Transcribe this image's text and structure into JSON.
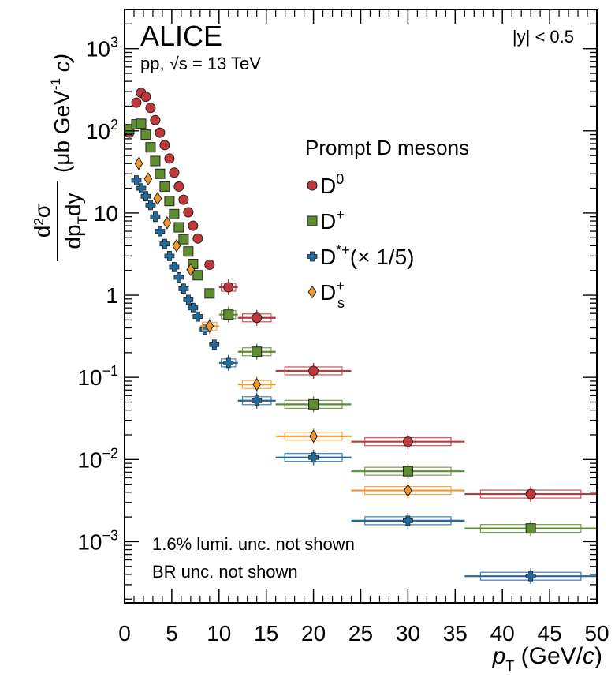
{
  "chart_data": {
    "type": "scatter",
    "y_scale": "log",
    "xlim": [
      0,
      50
    ],
    "ylim": [
      0.00018,
      3000
    ],
    "x_ticks": [
      "0",
      "5",
      "10",
      "15",
      "20",
      "25",
      "30",
      "35",
      "40",
      "45",
      "50"
    ],
    "y_ticks": [
      {
        "value": 1000,
        "base": "10",
        "exp": "3"
      },
      {
        "value": 100,
        "base": "10",
        "exp": "2"
      },
      {
        "value": 10,
        "base": "10",
        "exp": ""
      },
      {
        "value": 1,
        "base": "1",
        "exp": ""
      },
      {
        "value": 0.1,
        "base": "10",
        "exp": "−1"
      },
      {
        "value": 0.01,
        "base": "10",
        "exp": "−2"
      },
      {
        "value": 0.001,
        "base": "10",
        "exp": "−3"
      }
    ],
    "xlabel": {
      "var": "p",
      "sub": "T",
      "unit": " (GeV/",
      "c": "c",
      "close": ")"
    },
    "ylabel": {
      "num": "d²σ",
      "den": "dp",
      "den_sub": "T",
      "den_end": "dy",
      "unit": "(μb GeV",
      "unit_exp": "-1",
      "unit_c": " c)"
    },
    "experiment": "ALICE",
    "system": "pp, √s = 13 TeV",
    "rapidity": "|y| < 0.5",
    "legend_title": "Prompt D mesons",
    "legend_placement": "right-middle",
    "notes": [
      "1.6% lumi. unc. not shown",
      "BR unc. not shown"
    ],
    "series": [
      {
        "name": "D0",
        "label_main": "D",
        "label_sup": "0",
        "label_sub": "",
        "label_extra": "",
        "color": "#c0383a",
        "marker": "circle",
        "points": [
          {
            "x": 0.5,
            "y": 95
          },
          {
            "x": 1.25,
            "y": 220
          },
          {
            "x": 1.75,
            "y": 290
          },
          {
            "x": 2.25,
            "y": 260
          },
          {
            "x": 2.75,
            "y": 190
          },
          {
            "x": 3.25,
            "y": 135
          },
          {
            "x": 3.75,
            "y": 95
          },
          {
            "x": 4.25,
            "y": 67
          },
          {
            "x": 4.75,
            "y": 46
          },
          {
            "x": 5.25,
            "y": 31
          },
          {
            "x": 5.75,
            "y": 21
          },
          {
            "x": 6.25,
            "y": 14.5
          },
          {
            "x": 6.75,
            "y": 10.2
          },
          {
            "x": 7.25,
            "y": 7.0
          },
          {
            "x": 7.75,
            "y": 4.9
          },
          {
            "x": 9,
            "y": 2.35
          },
          {
            "x": 11,
            "y": 1.25,
            "xerr": 1
          },
          {
            "x": 14,
            "y": 0.53,
            "xerr": 2
          },
          {
            "x": 20,
            "y": 0.12,
            "xerr": 4
          },
          {
            "x": 30,
            "y": 0.0165,
            "xerr": 6
          },
          {
            "x": 43,
            "y": 0.0038,
            "xerr": 7
          }
        ]
      },
      {
        "name": "D+",
        "label_main": "D",
        "label_sup": "+",
        "label_sub": "",
        "label_extra": "",
        "color": "#5e8f2e",
        "marker": "square",
        "points": [
          {
            "x": 0.5,
            "y": 105
          },
          {
            "x": 1.25,
            "y": 120
          },
          {
            "x": 1.75,
            "y": 122
          },
          {
            "x": 2.25,
            "y": 90
          },
          {
            "x": 2.75,
            "y": 63
          },
          {
            "x": 3.25,
            "y": 43
          },
          {
            "x": 3.75,
            "y": 30
          },
          {
            "x": 4.25,
            "y": 21
          },
          {
            "x": 4.75,
            "y": 14
          },
          {
            "x": 5.25,
            "y": 9.7
          },
          {
            "x": 5.75,
            "y": 6.7
          },
          {
            "x": 6.25,
            "y": 4.8
          },
          {
            "x": 6.75,
            "y": 3.4
          },
          {
            "x": 7.25,
            "y": 2.4
          },
          {
            "x": 7.75,
            "y": 1.75
          },
          {
            "x": 9,
            "y": 1.05
          },
          {
            "x": 11,
            "y": 0.58,
            "xerr": 1
          },
          {
            "x": 14,
            "y": 0.205,
            "xerr": 2
          },
          {
            "x": 20,
            "y": 0.047,
            "xerr": 4
          },
          {
            "x": 30,
            "y": 0.0072,
            "xerr": 6
          },
          {
            "x": 43,
            "y": 0.00145,
            "xerr": 7
          }
        ]
      },
      {
        "name": "D*+ (× 1/5)",
        "label_main": "D",
        "label_sup": "*+",
        "label_sub": "",
        "label_extra": "(× 1/5)",
        "color": "#1f6a9b",
        "marker": "cross",
        "points": [
          {
            "x": 1.25,
            "y": 25
          },
          {
            "x": 1.75,
            "y": 20
          },
          {
            "x": 2.25,
            "y": 16
          },
          {
            "x": 2.75,
            "y": 12.5
          },
          {
            "x": 3.25,
            "y": 9.0
          },
          {
            "x": 3.75,
            "y": 6.0
          },
          {
            "x": 4.25,
            "y": 4.2
          },
          {
            "x": 4.75,
            "y": 3.0
          },
          {
            "x": 5.25,
            "y": 2.2
          },
          {
            "x": 5.75,
            "y": 1.65
          },
          {
            "x": 6.25,
            "y": 1.2
          },
          {
            "x": 6.75,
            "y": 0.88
          },
          {
            "x": 7.25,
            "y": 0.7
          },
          {
            "x": 7.75,
            "y": 0.55
          },
          {
            "x": 8.5,
            "y": 0.38
          },
          {
            "x": 9.5,
            "y": 0.25
          },
          {
            "x": 11,
            "y": 0.15,
            "xerr": 1
          },
          {
            "x": 14,
            "y": 0.052,
            "xerr": 2
          },
          {
            "x": 20,
            "y": 0.0106,
            "xerr": 4
          },
          {
            "x": 30,
            "y": 0.0018,
            "xerr": 6
          },
          {
            "x": 43,
            "y": 0.00038,
            "xerr": 7
          }
        ]
      },
      {
        "name": "Ds+",
        "label_main": "D",
        "label_sup": "+",
        "label_sub": "s",
        "label_extra": "",
        "color": "#f0962a",
        "marker": "diamond",
        "points": [
          {
            "x": 1.5,
            "y": 40
          },
          {
            "x": 2.5,
            "y": 26
          },
          {
            "x": 3.5,
            "y": 15
          },
          {
            "x": 4.5,
            "y": 7.6
          },
          {
            "x": 5.5,
            "y": 4.0
          },
          {
            "x": 7,
            "y": 2.05
          },
          {
            "x": 9,
            "y": 0.42,
            "xerr": 1
          },
          {
            "x": 14,
            "y": 0.082,
            "xerr": 2
          },
          {
            "x": 20,
            "y": 0.0192,
            "xerr": 4
          },
          {
            "x": 30,
            "y": 0.0042,
            "xerr": 6
          }
        ]
      }
    ]
  }
}
